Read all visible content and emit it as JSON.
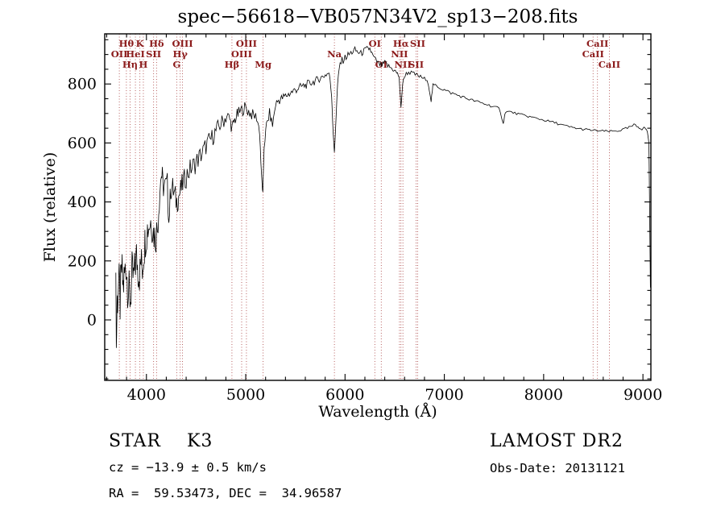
{
  "chart_data": {
    "type": "line",
    "title": "spec−56618−VB057N34V2_sp13−208.fits",
    "xlabel": "Wavelength (Å)",
    "ylabel": "Flux (relative)",
    "xlim": [
      3580,
      9080
    ],
    "ylim": [
      -205,
      970
    ],
    "xticks": [
      4000,
      5000,
      6000,
      7000,
      8000,
      9000
    ],
    "yticks": [
      0,
      200,
      400,
      600,
      800
    ],
    "xminor_step": 200,
    "yminor_step": 50,
    "grid": false,
    "legend": "none",
    "line_color": "#000000",
    "marker_color": "#b05050",
    "marker_label_color": "#8b1a1a",
    "series_anchors": [
      [
        3692,
        160,
        0
      ],
      [
        3697,
        -95,
        0
      ],
      [
        3705,
        60,
        90
      ],
      [
        3720,
        130,
        90
      ],
      [
        3735,
        60,
        90
      ],
      [
        3750,
        170,
        85
      ],
      [
        3765,
        110,
        85
      ],
      [
        3780,
        150,
        80
      ],
      [
        3795,
        195,
        80
      ],
      [
        3810,
        120,
        80
      ],
      [
        3825,
        90,
        80
      ],
      [
        3840,
        70,
        75
      ],
      [
        3855,
        160,
        75
      ],
      [
        3870,
        140,
        70
      ],
      [
        3885,
        180,
        70
      ],
      [
        3900,
        215,
        70
      ],
      [
        3915,
        170,
        70
      ],
      [
        3930,
        150,
        65
      ],
      [
        3945,
        200,
        65
      ],
      [
        3960,
        175,
        65
      ],
      [
        3975,
        230,
        62
      ],
      [
        3990,
        280,
        70
      ],
      [
        4010,
        310,
        70
      ],
      [
        4030,
        330,
        70
      ],
      [
        4050,
        340,
        70
      ],
      [
        4070,
        300,
        68
      ],
      [
        4090,
        280,
        68
      ],
      [
        4110,
        310,
        65
      ],
      [
        4130,
        420,
        60
      ],
      [
        4150,
        500,
        55
      ],
      [
        4165,
        460,
        52
      ],
      [
        4185,
        450,
        50
      ],
      [
        4210,
        455,
        50
      ],
      [
        4226,
        330,
        25
      ],
      [
        4245,
        450,
        48
      ],
      [
        4265,
        445,
        46
      ],
      [
        4285,
        420,
        46
      ],
      [
        4305,
        400,
        44
      ],
      [
        4325,
        420,
        44
      ],
      [
        4345,
        440,
        42
      ],
      [
        4365,
        460,
        42
      ],
      [
        4390,
        480,
        40
      ],
      [
        4420,
        500,
        40
      ],
      [
        4450,
        515,
        38
      ],
      [
        4480,
        525,
        38
      ],
      [
        4510,
        540,
        36
      ],
      [
        4540,
        555,
        36
      ],
      [
        4570,
        570,
        35
      ],
      [
        4600,
        590,
        34
      ],
      [
        4630,
        605,
        33
      ],
      [
        4660,
        618,
        32
      ],
      [
        4690,
        635,
        31
      ],
      [
        4720,
        650,
        30
      ],
      [
        4750,
        665,
        29
      ],
      [
        4780,
        678,
        28
      ],
      [
        4810,
        692,
        27
      ],
      [
        4840,
        680,
        26
      ],
      [
        4861,
        648,
        20
      ],
      [
        4880,
        670,
        24
      ],
      [
        4905,
        690,
        24
      ],
      [
        4930,
        700,
        23
      ],
      [
        4960,
        712,
        22
      ],
      [
        4990,
        720,
        22
      ],
      [
        5020,
        710,
        22
      ],
      [
        5050,
        700,
        21
      ],
      [
        5080,
        692,
        20
      ],
      [
        5110,
        688,
        20
      ],
      [
        5140,
        640,
        18
      ],
      [
        5160,
        480,
        10
      ],
      [
        5172,
        428,
        8
      ],
      [
        5185,
        590,
        14
      ],
      [
        5210,
        660,
        18
      ],
      [
        5240,
        700,
        18
      ],
      [
        5270,
        660,
        18
      ],
      [
        5300,
        730,
        18
      ],
      [
        5330,
        745,
        17
      ],
      [
        5360,
        750,
        17
      ],
      [
        5390,
        757,
        16
      ],
      [
        5420,
        763,
        16
      ],
      [
        5450,
        770,
        16
      ],
      [
        5480,
        776,
        15
      ],
      [
        5510,
        782,
        15
      ],
      [
        5540,
        788,
        15
      ],
      [
        5570,
        792,
        14
      ],
      [
        5600,
        796,
        14
      ],
      [
        5630,
        800,
        14
      ],
      [
        5660,
        804,
        13
      ],
      [
        5690,
        808,
        13
      ],
      [
        5720,
        814,
        13
      ],
      [
        5750,
        820,
        12
      ],
      [
        5780,
        826,
        12
      ],
      [
        5810,
        832,
        12
      ],
      [
        5840,
        838,
        12
      ],
      [
        5865,
        760,
        8
      ],
      [
        5880,
        640,
        6
      ],
      [
        5893,
        565,
        5
      ],
      [
        5906,
        660,
        6
      ],
      [
        5925,
        800,
        10
      ],
      [
        5950,
        870,
        14
      ],
      [
        5980,
        882,
        14
      ],
      [
        6010,
        892,
        13
      ],
      [
        6040,
        900,
        13
      ],
      [
        6070,
        908,
        12
      ],
      [
        6100,
        915,
        12
      ],
      [
        6130,
        908,
        12
      ],
      [
        6160,
        903,
        12
      ],
      [
        6190,
        912,
        11
      ],
      [
        6220,
        918,
        11
      ],
      [
        6250,
        920,
        11
      ],
      [
        6280,
        895,
        11
      ],
      [
        6310,
        880,
        10
      ],
      [
        6340,
        868,
        10
      ],
      [
        6370,
        862,
        10
      ],
      [
        6400,
        872,
        10
      ],
      [
        6430,
        862,
        10
      ],
      [
        6460,
        855,
        9
      ],
      [
        6490,
        848,
        9
      ],
      [
        6520,
        838,
        9
      ],
      [
        6545,
        825,
        8
      ],
      [
        6563,
        718,
        5
      ],
      [
        6580,
        800,
        7
      ],
      [
        6605,
        832,
        8
      ],
      [
        6640,
        840,
        8
      ],
      [
        6680,
        836,
        8
      ],
      [
        6720,
        830,
        8
      ],
      [
        6760,
        824,
        7
      ],
      [
        6800,
        818,
        7
      ],
      [
        6840,
        800,
        6
      ],
      [
        6867,
        742,
        4
      ],
      [
        6885,
        795,
        6
      ],
      [
        6920,
        795,
        6
      ],
      [
        6960,
        786,
        6
      ],
      [
        7000,
        780,
        6
      ],
      [
        7050,
        772,
        6
      ],
      [
        7100,
        766,
        6
      ],
      [
        7150,
        760,
        5
      ],
      [
        7200,
        754,
        5
      ],
      [
        7250,
        748,
        5
      ],
      [
        7300,
        743,
        5
      ],
      [
        7350,
        738,
        5
      ],
      [
        7400,
        733,
        5
      ],
      [
        7450,
        728,
        5
      ],
      [
        7500,
        723,
        5
      ],
      [
        7550,
        716,
        5
      ],
      [
        7594,
        668,
        3
      ],
      [
        7615,
        706,
        4
      ],
      [
        7660,
        706,
        4
      ],
      [
        7710,
        701,
        4
      ],
      [
        7760,
        697,
        4
      ],
      [
        7810,
        693,
        4
      ],
      [
        7860,
        689,
        4
      ],
      [
        7910,
        685,
        4
      ],
      [
        7960,
        681,
        4
      ],
      [
        8010,
        677,
        4
      ],
      [
        8060,
        673,
        4
      ],
      [
        8110,
        669,
        4
      ],
      [
        8160,
        664,
        5
      ],
      [
        8210,
        658,
        5
      ],
      [
        8260,
        654,
        5
      ],
      [
        8310,
        651,
        4
      ],
      [
        8360,
        648,
        4
      ],
      [
        8410,
        646,
        4
      ],
      [
        8460,
        644,
        4
      ],
      [
        8510,
        642,
        4
      ],
      [
        8560,
        641,
        4
      ],
      [
        8610,
        640,
        4
      ],
      [
        8660,
        639,
        4
      ],
      [
        8710,
        640,
        4
      ],
      [
        8760,
        642,
        4
      ],
      [
        8810,
        646,
        5
      ],
      [
        8860,
        652,
        5
      ],
      [
        8910,
        660,
        6
      ],
      [
        8950,
        655,
        5
      ],
      [
        8990,
        648,
        5
      ],
      [
        9020,
        652,
        4
      ],
      [
        9045,
        638,
        3
      ],
      [
        9060,
        600,
        0
      ],
      [
        9068,
        350,
        0
      ],
      [
        9075,
        110,
        0
      ]
    ],
    "spectral_lines": [
      {
        "wavelength": 3727,
        "label": "OII",
        "row": 2
      },
      {
        "wavelength": 3798,
        "label": "Hθ",
        "row": 1
      },
      {
        "wavelength": 3835,
        "label": "Hη",
        "row": 3
      },
      {
        "wavelength": 3889,
        "label": "HeI",
        "row": 2
      },
      {
        "wavelength": 3934,
        "label": "K",
        "row": 1
      },
      {
        "wavelength": 3969,
        "label": "H",
        "row": 3
      },
      {
        "wavelength": 4072,
        "label": "SII",
        "row": 2
      },
      {
        "wavelength": 4102,
        "label": "Hδ",
        "row": 1
      },
      {
        "wavelength": 4305,
        "label": "G",
        "row": 3
      },
      {
        "wavelength": 4340,
        "label": "Hγ",
        "row": 2
      },
      {
        "wavelength": 4363,
        "label": "OIII",
        "row": 1
      },
      {
        "wavelength": 4861,
        "label": "Hβ",
        "row": 3
      },
      {
        "wavelength": 4959,
        "label": "OIII",
        "row": 2
      },
      {
        "wavelength": 5007,
        "label": "OIII",
        "row": 1
      },
      {
        "wavelength": 5175,
        "label": "Mg",
        "row": 3
      },
      {
        "wavelength": 5893,
        "label": "Na",
        "row": 2
      },
      {
        "wavelength": 6300,
        "label": "OI",
        "row": 1
      },
      {
        "wavelength": 6365,
        "label": "OI",
        "row": 3
      },
      {
        "wavelength": 6548,
        "label": "NII",
        "row": 2
      },
      {
        "wavelength": 6563,
        "label": "Hα",
        "row": 1
      },
      {
        "wavelength": 6583,
        "label": "NII",
        "row": 3
      },
      {
        "wavelength": 6716,
        "label": "SII",
        "row": 3
      },
      {
        "wavelength": 6731,
        "label": "SII",
        "row": 1
      },
      {
        "wavelength": 8498,
        "label": "CaII",
        "row": 2
      },
      {
        "wavelength": 8542,
        "label": "CaII",
        "row": 1
      },
      {
        "wavelength": 8662,
        "label": "CaII",
        "row": 3
      }
    ]
  },
  "footer": {
    "class_label": "STAR    K3",
    "survey": "LAMOST DR2",
    "cz": "cz = −13.9 ± 0.5 km/s",
    "obs_date": "Obs-Date: 20131121",
    "coords": "RA =  59.53473, DEC =  34.96587"
  }
}
